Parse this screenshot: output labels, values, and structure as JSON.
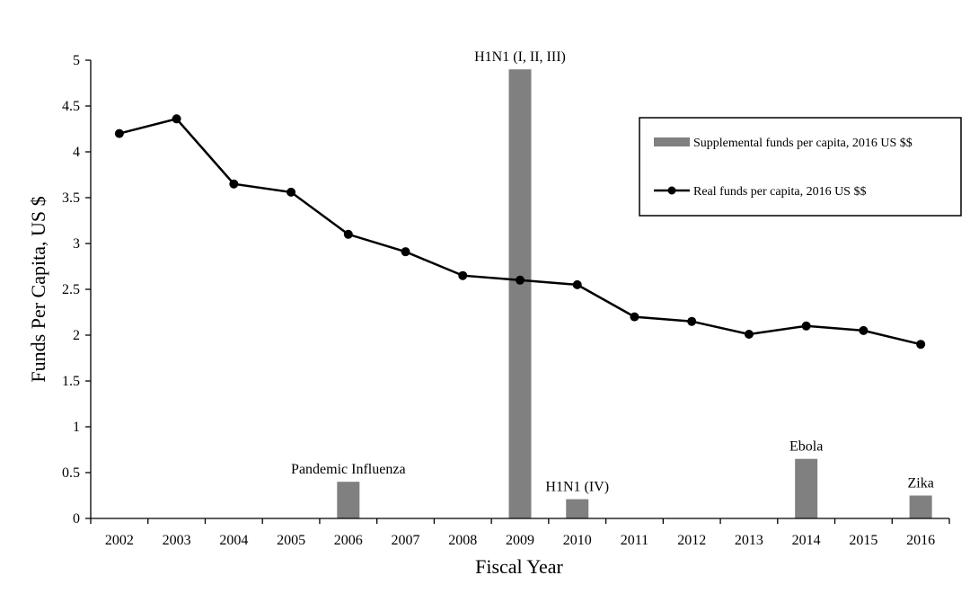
{
  "chart_data": {
    "type": "bar",
    "categories": [
      "2002",
      "2003",
      "2004",
      "2005",
      "2006",
      "2007",
      "2008",
      "2009",
      "2010",
      "2011",
      "2012",
      "2013",
      "2014",
      "2015",
      "2016"
    ],
    "series": [
      {
        "name": "Supplemental funds per capita, 2016 US $$",
        "type": "bar",
        "color": "#808080",
        "values": [
          null,
          null,
          null,
          null,
          0.4,
          null,
          null,
          4.9,
          0.21,
          null,
          null,
          null,
          0.65,
          null,
          0.25
        ]
      },
      {
        "name": "Real funds per capita, 2016 US $$",
        "type": "line",
        "color": "#000000",
        "values": [
          4.2,
          4.36,
          3.65,
          3.56,
          3.1,
          2.91,
          2.65,
          2.6,
          2.55,
          2.2,
          2.15,
          2.01,
          2.1,
          2.05,
          1.9
        ]
      }
    ],
    "annotations": [
      {
        "category": "2006",
        "text": "Pandemic Influenza"
      },
      {
        "category": "2009",
        "text": "H1N1  (I, II, III)"
      },
      {
        "category": "2010",
        "text": "H1N1  (IV)"
      },
      {
        "category": "2014",
        "text": "Ebola"
      },
      {
        "category": "2016",
        "text": "Zika"
      }
    ],
    "yticks": [
      "0",
      "0.5",
      "1",
      "1.5",
      "2",
      "2.5",
      "3",
      "3.5",
      "4",
      "4.5",
      "5"
    ],
    "title": "",
    "xlabel": "Fiscal Year",
    "ylabel": "Funds Per Capita, US $",
    "ylim": [
      0,
      5
    ],
    "grid": false,
    "legend_position": "top-right"
  }
}
